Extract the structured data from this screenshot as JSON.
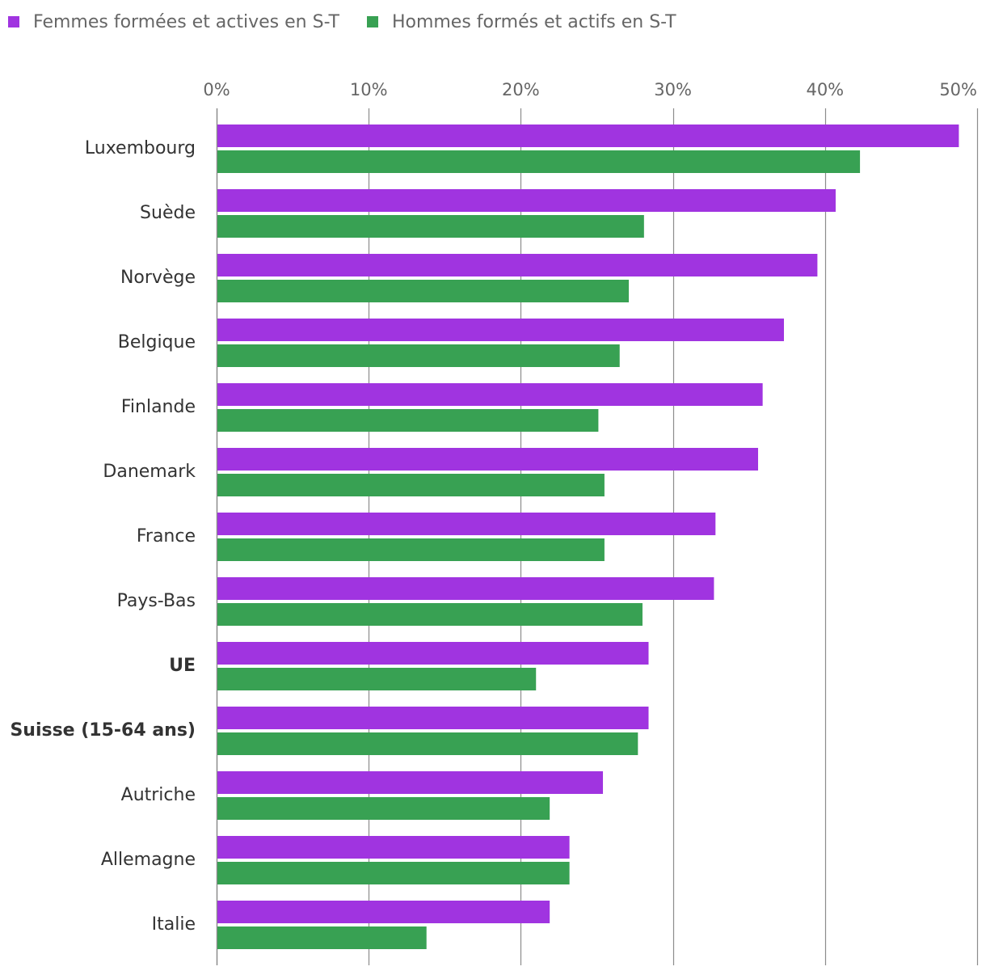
{
  "chart_data": {
    "type": "bar",
    "orientation": "horizontal",
    "categories": [
      "Luxembourg",
      "Suède",
      "Norvège",
      "Belgique",
      "Finlande",
      "Danemark",
      "France",
      "Pays-Bas",
      "UE",
      "Suisse (15-64 ans)",
      "Autriche",
      "Allemagne",
      "Italie"
    ],
    "bold_categories": [
      "UE",
      "Suisse (15-64 ans)"
    ],
    "series": [
      {
        "name": "Femmes formées et actives en S-T",
        "color": "#a034e0",
        "values": [
          48.8,
          40.7,
          39.5,
          37.3,
          35.9,
          35.6,
          32.8,
          32.7,
          28.4,
          28.4,
          25.4,
          23.2,
          21.9
        ]
      },
      {
        "name": "Hommes formés et actifs en S-T",
        "color": "#38a153",
        "values": [
          42.3,
          28.1,
          27.1,
          26.5,
          25.1,
          25.5,
          25.5,
          28.0,
          21.0,
          27.7,
          21.9,
          23.2,
          13.8
        ]
      }
    ],
    "xlim": [
      0,
      50
    ],
    "xticks": [
      0,
      10,
      20,
      30,
      40,
      50
    ],
    "tick_labels": [
      "0%",
      "10%",
      "20%",
      "30%",
      "40%",
      "50%"
    ],
    "title": "",
    "xlabel": "",
    "ylabel": "",
    "legend_position": "top-left",
    "grid": true,
    "colors": {
      "grid": "#8c8c8c",
      "tick_text": "#666666",
      "category_text": "#333333"
    }
  }
}
